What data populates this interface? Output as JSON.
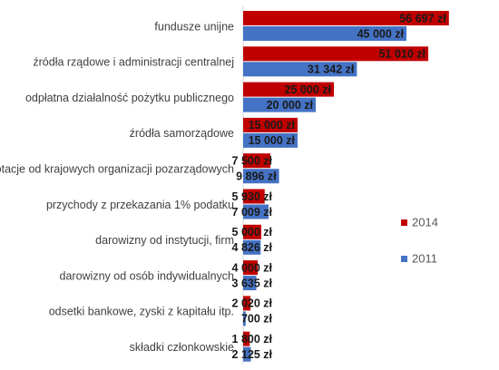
{
  "chart_data": {
    "type": "bar",
    "orientation": "horizontal",
    "categories": [
      "fundusze unijne",
      "źródła rządowe i administracji centralnej",
      "odpłatna działalność pożytku publicznego",
      "źródła samorządowe",
      "dotacje od krajowych organizacji pozarządowych",
      "przychody z przekazania 1% podatku",
      "darowizny od instytucji, firm",
      "darowizny od osób indywidualnych",
      "odsetki bankowe, zyski z kapitału itp.",
      "składki członkowskie"
    ],
    "series": [
      {
        "name": "2014",
        "color": "#c00000",
        "values": [
          56697,
          51010,
          25000,
          15000,
          7500,
          5930,
          5000,
          4000,
          2020,
          1800
        ],
        "labels": [
          "56 697 zł",
          "51 010 zł",
          "25 000 zł",
          "15 000 zł",
          "7 500 zł",
          "5 930 zł",
          "5 000 zł",
          "4 000 zł",
          "2 020 zł",
          "1 800 zł"
        ]
      },
      {
        "name": "2011",
        "color": "#4472c4",
        "values": [
          45000,
          31342,
          20000,
          15000,
          9896,
          7009,
          4826,
          3635,
          700,
          2125
        ],
        "labels": [
          "45 000 zł",
          "31 342 zł",
          "20 000 zł",
          "15 000 zł",
          "9 896 zł",
          "7 009 zł",
          "4 826 zł",
          "3 635 zł",
          "700 zł",
          "2 125 zł"
        ]
      }
    ],
    "legend_order": [
      "2014",
      "2011"
    ],
    "legend_position": "right",
    "xlim": [
      0,
      60000
    ],
    "grid": false,
    "title": "",
    "xlabel": "",
    "ylabel": ""
  }
}
